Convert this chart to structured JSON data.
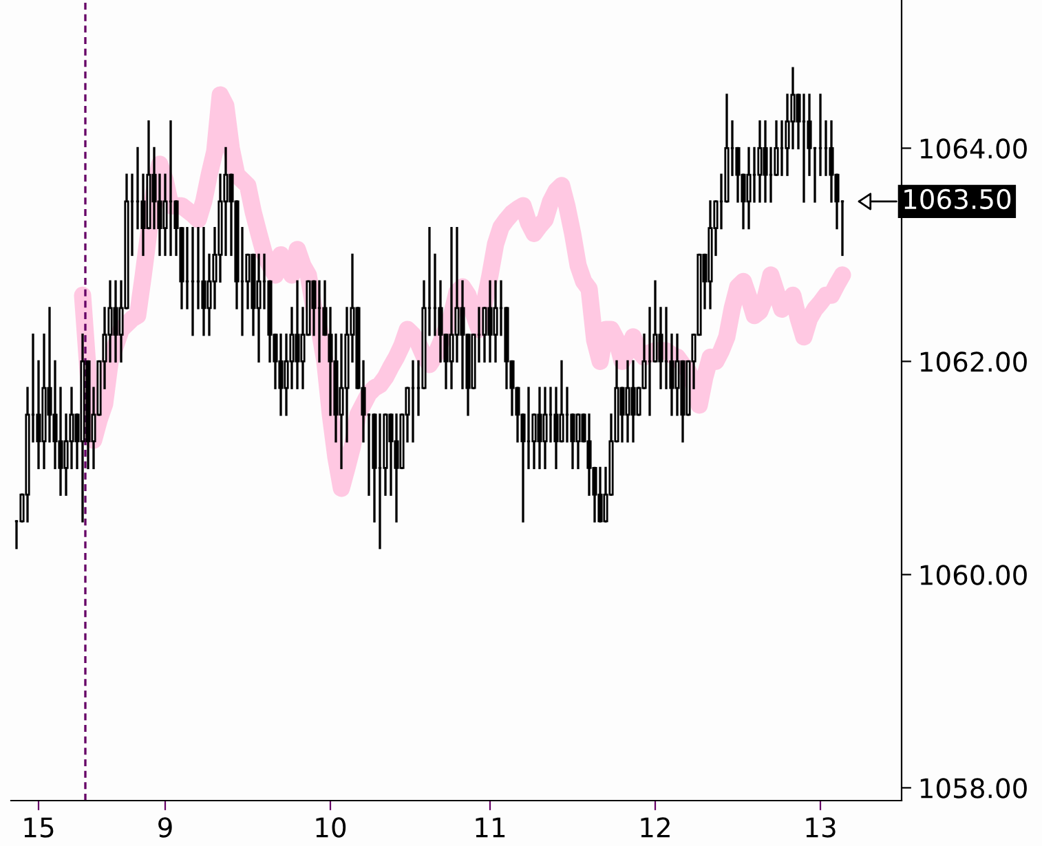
{
  "chart_data": {
    "type": "candlestick",
    "categories": [
      null,
      null,
      null,
      null,
      "15",
      null,
      null,
      null,
      null,
      null,
      null,
      null,
      null,
      null,
      null,
      null,
      null,
      null,
      null,
      null,
      null,
      null,
      null,
      null,
      null,
      null,
      null,
      "9",
      null,
      null,
      null,
      null,
      null,
      null,
      null,
      null,
      null,
      null,
      null,
      null,
      null,
      null,
      null,
      null,
      null,
      null,
      null,
      null,
      null,
      null,
      null,
      null,
      null,
      null,
      null,
      null,
      null,
      "10",
      null,
      null,
      null,
      null,
      null,
      null,
      null,
      null,
      null,
      null,
      null,
      null,
      null,
      null,
      null,
      null,
      null,
      null,
      null,
      null,
      null,
      null,
      null,
      null,
      null,
      null,
      null,
      null,
      "11",
      null,
      null,
      null,
      null,
      null,
      null,
      null,
      null,
      null,
      null,
      null,
      null,
      null,
      null,
      null,
      null,
      null,
      null,
      null,
      null,
      null,
      null,
      null,
      null,
      null,
      null,
      null,
      null,
      null,
      "12",
      null,
      null,
      null,
      null,
      null,
      null,
      null,
      null,
      null,
      null,
      null,
      null,
      null,
      null,
      null,
      null,
      null,
      null,
      null,
      null,
      null,
      null,
      null,
      null,
      null,
      null,
      null,
      null,
      null,
      "13",
      null,
      null,
      null,
      null
    ],
    "ohlc": [
      [
        1060.5,
        1060.5,
        1060.25,
        1060.5
      ],
      [
        1060.5,
        1060.75,
        1060.5,
        1060.75
      ],
      [
        1060.75,
        1061.75,
        1060.5,
        1061.5
      ],
      [
        1061.5,
        1062.25,
        1061.25,
        1061.5
      ],
      [
        1061.5,
        1062,
        1061,
        1061.25
      ],
      [
        1061.25,
        1062.25,
        1061,
        1061.75
      ],
      [
        1061.75,
        1062.5,
        1061.25,
        1061.5
      ],
      [
        1061.5,
        1062,
        1061,
        1061.25
      ],
      [
        1061.25,
        1061.75,
        1060.75,
        1061
      ],
      [
        1061,
        1061.5,
        1060.75,
        1061.25
      ],
      [
        1061.25,
        1061.75,
        1061,
        1061.5
      ],
      [
        1061.5,
        1061.5,
        1061,
        1061.25
      ],
      [
        1061.25,
        1062.25,
        1060.5,
        1062
      ],
      [
        1062,
        1062,
        1061,
        1061.25
      ],
      [
        1061.25,
        1061.75,
        1061,
        1061.5
      ],
      [
        1061.5,
        1062,
        1061.5,
        1062
      ],
      [
        1062,
        1062.5,
        1061.75,
        1062.25
      ],
      [
        1062.25,
        1062.75,
        1062,
        1062.5
      ],
      [
        1062.5,
        1062.75,
        1062,
        1062.25
      ],
      [
        1062.25,
        1062.75,
        1062,
        1062.5
      ],
      [
        1062.5,
        1063.75,
        1062.5,
        1063.5
      ],
      [
        1063.5,
        1063.75,
        1063,
        1063.5
      ],
      [
        1063.5,
        1064,
        1063.25,
        1063.5
      ],
      [
        1063.5,
        1063.75,
        1063,
        1063.25
      ],
      [
        1063.25,
        1064.25,
        1063.25,
        1063.75
      ],
      [
        1063.75,
        1064,
        1063.25,
        1063.5
      ],
      [
        1063.5,
        1063.75,
        1063,
        1063.25
      ],
      [
        1063.25,
        1063.75,
        1063,
        1063.5
      ],
      [
        1063.5,
        1064.25,
        1063,
        1063.5
      ],
      [
        1063.5,
        1063.5,
        1063,
        1063.25
      ],
      [
        1063.25,
        1063.25,
        1062.5,
        1062.75
      ],
      [
        1062.75,
        1063.25,
        1062.5,
        1062.75
      ],
      [
        1062.75,
        1063.25,
        1062.25,
        1062.75
      ],
      [
        1062.75,
        1063.25,
        1062.5,
        1062.75
      ],
      [
        1062.75,
        1063.25,
        1062.25,
        1062.5
      ],
      [
        1062.5,
        1063,
        1062.25,
        1062.75
      ],
      [
        1062.75,
        1063.25,
        1062.5,
        1063
      ],
      [
        1063,
        1063.75,
        1062.75,
        1063.5
      ],
      [
        1063.5,
        1064,
        1063,
        1063.75
      ],
      [
        1063.75,
        1063.75,
        1063,
        1063.5
      ],
      [
        1063.5,
        1063.5,
        1062.5,
        1062.75
      ],
      [
        1062.75,
        1063.25,
        1062.25,
        1062.75
      ],
      [
        1062.75,
        1063,
        1062.5,
        1063
      ],
      [
        1063,
        1063,
        1062.25,
        1062.5
      ],
      [
        1062.5,
        1063,
        1062,
        1062.75
      ],
      [
        1062.75,
        1063,
        1062.5,
        1062.75
      ],
      [
        1062.75,
        1062.75,
        1062,
        1062.25
      ],
      [
        1062.25,
        1062.25,
        1061.75,
        1062
      ],
      [
        1062,
        1062.25,
        1061.5,
        1061.75
      ],
      [
        1061.75,
        1062.25,
        1061.5,
        1062
      ],
      [
        1062,
        1062.5,
        1061.75,
        1062.25
      ],
      [
        1062.25,
        1062.75,
        1061.75,
        1062
      ],
      [
        1062,
        1062.5,
        1061.75,
        1062.25
      ],
      [
        1062.25,
        1062.75,
        1062.25,
        1062.75
      ],
      [
        1062.75,
        1062.75,
        1062.25,
        1062.5
      ],
      [
        1062.5,
        1062.75,
        1062,
        1062.5
      ],
      [
        1062.5,
        1062.75,
        1062.25,
        1062.25
      ],
      [
        1062.25,
        1062.5,
        1061.5,
        1062
      ],
      [
        1062,
        1062.25,
        1061.25,
        1061.5
      ],
      [
        1061.5,
        1062.25,
        1061,
        1061.75
      ],
      [
        1061.75,
        1062.5,
        1061.25,
        1062.25
      ],
      [
        1062.25,
        1063,
        1062,
        1062.5
      ],
      [
        1062.5,
        1062.5,
        1061.75,
        1061.75
      ],
      [
        1061.75,
        1062,
        1061.25,
        1061.5
      ],
      [
        1061.5,
        1061.5,
        1060.75,
        1061.5
      ],
      [
        1061.5,
        1061.5,
        1060.5,
        1061
      ],
      [
        1061,
        1061.5,
        1060.25,
        1061
      ],
      [
        1061,
        1061.5,
        1060.75,
        1061.5
      ],
      [
        1061.5,
        1061.5,
        1060.75,
        1061.25
      ],
      [
        1061.25,
        1061.5,
        1060.5,
        1061
      ],
      [
        1061,
        1061.5,
        1061,
        1061.5
      ],
      [
        1061.5,
        1061.75,
        1061.25,
        1061.75
      ],
      [
        1061.75,
        1062,
        1061.25,
        1061.75
      ],
      [
        1061.75,
        1062,
        1061.5,
        1061.75
      ],
      [
        1061.75,
        1062.75,
        1061.75,
        1062.5
      ],
      [
        1062.5,
        1063.25,
        1062.25,
        1062.5
      ],
      [
        1062.5,
        1063,
        1062.25,
        1062.5
      ],
      [
        1062.5,
        1062.75,
        1062,
        1062.25
      ],
      [
        1062.25,
        1062.25,
        1061.75,
        1062
      ],
      [
        1062,
        1063.25,
        1061.75,
        1062.25
      ],
      [
        1062.25,
        1063.25,
        1062,
        1062.5
      ],
      [
        1062.5,
        1062.75,
        1061.75,
        1062.25
      ],
      [
        1062.25,
        1062.25,
        1061.5,
        1061.75
      ],
      [
        1061.75,
        1062.25,
        1061.75,
        1062.25
      ],
      [
        1062.25,
        1062.5,
        1062,
        1062.25
      ],
      [
        1062.25,
        1062.5,
        1062,
        1062.5
      ],
      [
        1062.5,
        1062.75,
        1062,
        1062.25
      ],
      [
        1062.25,
        1062.75,
        1062,
        1062.5
      ],
      [
        1062.5,
        1062.75,
        1062.25,
        1062.5
      ],
      [
        1062.5,
        1062.5,
        1061.75,
        1062
      ],
      [
        1062,
        1062,
        1061.5,
        1061.75
      ],
      [
        1061.75,
        1061.75,
        1061.25,
        1061.5
      ],
      [
        1061.5,
        1061.5,
        1060.5,
        1061.25
      ],
      [
        1061.25,
        1061.75,
        1061,
        1061.25
      ],
      [
        1061.25,
        1061.5,
        1061,
        1061.5
      ],
      [
        1061.5,
        1061.75,
        1061,
        1061.25
      ],
      [
        1061.25,
        1061.75,
        1061,
        1061.5
      ],
      [
        1061.5,
        1061.75,
        1061.25,
        1061.5
      ],
      [
        1061.5,
        1061.75,
        1061,
        1061.25
      ],
      [
        1061.25,
        1062,
        1061.25,
        1061.5
      ],
      [
        1061.5,
        1061.75,
        1061.25,
        1061.5
      ],
      [
        1061.5,
        1061.5,
        1061,
        1061.25
      ],
      [
        1061.25,
        1061.5,
        1061,
        1061.5
      ],
      [
        1061.5,
        1061.5,
        1061.25,
        1061.25
      ],
      [
        1061.25,
        1061.5,
        1060.75,
        1061
      ],
      [
        1061,
        1061,
        1060.5,
        1060.75
      ],
      [
        1060.75,
        1061,
        1060.5,
        1060.5
      ],
      [
        1060.5,
        1061,
        1060.5,
        1060.75
      ],
      [
        1060.75,
        1061.5,
        1060.75,
        1061.25
      ],
      [
        1061.25,
        1062,
        1061.25,
        1061.75
      ],
      [
        1061.75,
        1061.75,
        1061.25,
        1061.5
      ],
      [
        1061.5,
        1062,
        1061.25,
        1061.75
      ],
      [
        1061.75,
        1062,
        1061.25,
        1061.5
      ],
      [
        1061.5,
        1061.75,
        1061.5,
        1061.75
      ],
      [
        1061.75,
        1062.25,
        1061.75,
        1062
      ],
      [
        1062,
        1062.5,
        1061.5,
        1062
      ],
      [
        1062,
        1062.75,
        1062,
        1062.25
      ],
      [
        1062.25,
        1062.5,
        1061.75,
        1062
      ],
      [
        1062,
        1062.5,
        1061.75,
        1062
      ],
      [
        1062,
        1062.25,
        1061.5,
        1061.75
      ],
      [
        1061.75,
        1062.25,
        1061.5,
        1062
      ],
      [
        1062,
        1062,
        1061.25,
        1061.5
      ],
      [
        1061.5,
        1062,
        1061.5,
        1062
      ],
      [
        1062,
        1062.25,
        1061.75,
        1062.25
      ],
      [
        1062.25,
        1063,
        1062.25,
        1063
      ],
      [
        1063,
        1063,
        1062.5,
        1062.75
      ],
      [
        1062.75,
        1063.5,
        1062.5,
        1063.25
      ],
      [
        1063.25,
        1063.5,
        1063,
        1063.5
      ],
      [
        1063.5,
        1063.75,
        1063.25,
        1063.5
      ],
      [
        1063.5,
        1064.5,
        1063.5,
        1064
      ],
      [
        1064,
        1064.25,
        1063.75,
        1064
      ],
      [
        1064,
        1064,
        1063.5,
        1063.75
      ],
      [
        1063.75,
        1063.75,
        1063.25,
        1063.5
      ],
      [
        1063.5,
        1064,
        1063.25,
        1063.75
      ],
      [
        1063.75,
        1064,
        1063.5,
        1063.75
      ],
      [
        1063.75,
        1064.25,
        1063.5,
        1064
      ],
      [
        1064,
        1064.25,
        1063.5,
        1063.75
      ],
      [
        1063.75,
        1064,
        1063.5,
        1063.75
      ],
      [
        1063.75,
        1064.25,
        1063.75,
        1064
      ],
      [
        1064,
        1064.25,
        1063.75,
        1064
      ],
      [
        1064,
        1064.5,
        1063.75,
        1064.25
      ],
      [
        1064.25,
        1064.75,
        1064,
        1064.5
      ],
      [
        1064.5,
        1064.5,
        1064,
        1064.25
      ],
      [
        1064.25,
        1064.5,
        1063.5,
        1064.25
      ],
      [
        1064.25,
        1064.5,
        1063.75,
        1064
      ],
      [
        1064,
        1064,
        1063.5,
        1064
      ],
      [
        1064,
        1064.5,
        1063.75,
        1064
      ],
      [
        1064,
        1064.25,
        1063.75,
        1064
      ],
      [
        1064,
        1064.25,
        1063.5,
        1063.75
      ],
      [
        1063.75,
        1063.75,
        1063.25,
        1063.5
      ],
      [
        1063.5,
        1063.5,
        1063,
        1063.5
      ]
    ],
    "color": "#000000",
    "series": [
      {
        "type": "line",
        "color": "#ffc8e2",
        "values": [
          null,
          null,
          null,
          null,
          null,
          null,
          null,
          null,
          null,
          null,
          null,
          null,
          1062.62,
          1061.9,
          1061.26,
          1061.45,
          1061.6,
          1062.0,
          1062.15,
          1062.3,
          1062.35,
          1062.4,
          1062.43,
          1062.8,
          1063.2,
          1063.6,
          1063.85,
          1063.7,
          1063.46,
          1063.46,
          1063.46,
          1063.42,
          1063.38,
          1063.33,
          1063.5,
          1063.75,
          1063.97,
          1064.5,
          1064.4,
          1064.0,
          1063.75,
          1063.7,
          1063.65,
          1063.4,
          1063.2,
          1063.01,
          1062.9,
          1062.81,
          1063.0,
          1062.9,
          1062.81,
          1063.05,
          1062.9,
          1062.81,
          1062.5,
          1062.3,
          1062.0,
          1061.5,
          1061.1,
          1060.81,
          1061.0,
          1061.2,
          1061.5,
          1061.6,
          1061.7,
          1061.75,
          1061.78,
          1061.85,
          1061.95,
          1062.04,
          1062.15,
          1062.3,
          1062.25,
          1062.17,
          1062.05,
          1061.97,
          1062.05,
          1062.17,
          1062.3,
          1062.43,
          1062.65,
          1062.7,
          1062.62,
          1062.45,
          1062.3,
          1062.55,
          1062.81,
          1063.1,
          1063.26,
          1063.33,
          1063.39,
          1063.43,
          1063.46,
          1063.3,
          1063.2,
          1063.27,
          1063.33,
          1063.5,
          1063.6,
          1063.65,
          1063.45,
          1063.2,
          1062.9,
          1062.75,
          1062.68,
          1062.2,
          1062.0,
          1062.3,
          1062.3,
          1062.2,
          1062.0,
          1062.1,
          1062.23,
          1062.1,
          1062.04,
          1062.08,
          1062.1,
          1062.1,
          1062.1,
          1062.06,
          1062.04,
          1061.97,
          1061.91,
          1061.78,
          1061.59,
          1061.85,
          1062.04,
          1062.0,
          1062.1,
          1062.23,
          1062.5,
          1062.7,
          1062.75,
          1062.6,
          1062.43,
          1062.47,
          1062.6,
          1062.81,
          1062.65,
          1062.49,
          1062.55,
          1062.62,
          1062.4,
          1062.23,
          1062.4,
          1062.49,
          1062.55,
          1062.62,
          1062.62,
          1062.72,
          1062.81
        ]
      }
    ],
    "ylim": [
      1057.88,
      1065.39
    ],
    "yticks": [
      {
        "value": 1058,
        "label": "1058.00"
      },
      {
        "value": 1060,
        "label": "1060.00"
      },
      {
        "value": 1062,
        "label": "1062.00"
      },
      {
        "value": 1064,
        "label": "1064.00"
      }
    ],
    "annotations": [
      "1063.50"
    ],
    "grid": false,
    "legend": false
  }
}
